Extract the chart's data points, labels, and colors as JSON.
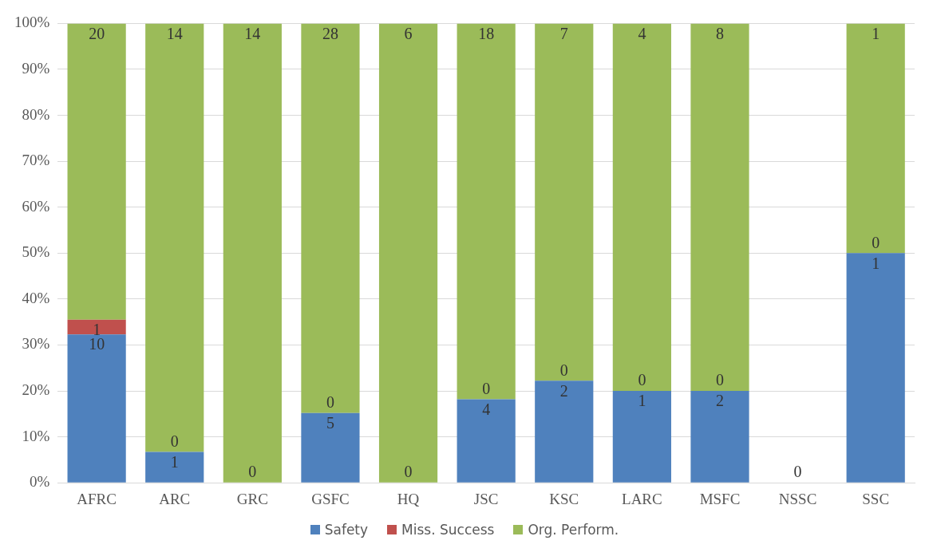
{
  "chart_data": {
    "type": "bar",
    "stacked": true,
    "categories": [
      "AFRC",
      "ARC",
      "GRC",
      "GSFC",
      "HQ",
      "JSC",
      "KSC",
      "LARC",
      "MSFC",
      "NSSC",
      "SSC"
    ],
    "series": [
      {
        "name": "Safety",
        "color": "#4f81bd",
        "values": [
          32.3,
          6.7,
          0,
          15.2,
          0,
          18.2,
          22.2,
          20,
          20,
          0,
          50
        ]
      },
      {
        "name": "Miss. Success",
        "color": "#c0504d",
        "values": [
          3.2,
          0,
          0,
          0,
          0,
          0,
          0,
          0,
          0,
          0,
          0
        ]
      },
      {
        "name": "Org. Perform.",
        "color": "#9bbb59",
        "values": [
          64.5,
          93.3,
          100,
          84.8,
          100,
          81.8,
          77.8,
          80,
          80,
          0,
          50
        ]
      }
    ],
    "annotations": [
      {
        "text": "10",
        "x": "AFRC",
        "y": 32.3
      },
      {
        "text": "1",
        "x": "AFRC",
        "y": 35.5
      },
      {
        "text": "20",
        "x": "AFRC",
        "y": 100
      },
      {
        "text": "1",
        "x": "ARC",
        "y": 6.7
      },
      {
        "text": "0",
        "x": "ARC",
        "y": 6.7
      },
      {
        "text": "14",
        "x": "ARC",
        "y": 100
      },
      {
        "text": "0",
        "x": "GRC",
        "y": 0
      },
      {
        "text": "14",
        "x": "GRC",
        "y": 100
      },
      {
        "text": "5",
        "x": "GSFC",
        "y": 15.2
      },
      {
        "text": "0",
        "x": "GSFC",
        "y": 15.2
      },
      {
        "text": "28",
        "x": "GSFC",
        "y": 100
      },
      {
        "text": "0",
        "x": "HQ",
        "y": 0
      },
      {
        "text": "6",
        "x": "HQ",
        "y": 100
      },
      {
        "text": "4",
        "x": "JSC",
        "y": 18.2
      },
      {
        "text": "0",
        "x": "JSC",
        "y": 18.2
      },
      {
        "text": "18",
        "x": "JSC",
        "y": 100
      },
      {
        "text": "2",
        "x": "KSC",
        "y": 22.2
      },
      {
        "text": "0",
        "x": "KSC",
        "y": 22.2
      },
      {
        "text": "7",
        "x": "KSC",
        "y": 100
      },
      {
        "text": "1",
        "x": "LARC",
        "y": 20
      },
      {
        "text": "0",
        "x": "LARC",
        "y": 20
      },
      {
        "text": "4",
        "x": "LARC",
        "y": 100
      },
      {
        "text": "2",
        "x": "MSFC",
        "y": 20
      },
      {
        "text": "0",
        "x": "MSFC",
        "y": 20
      },
      {
        "text": "8",
        "x": "MSFC",
        "y": 100
      },
      {
        "text": "0",
        "x": "NSSC",
        "y": 0
      },
      {
        "text": "1",
        "x": "SSC",
        "y": 50
      },
      {
        "text": "0",
        "x": "SSC",
        "y": 50
      },
      {
        "text": "1",
        "x": "SSC",
        "y": 100
      }
    ],
    "ylim": [
      0,
      100
    ],
    "yticks": [
      {
        "value": 0,
        "label": "0%"
      },
      {
        "value": 10,
        "label": "10%"
      },
      {
        "value": 20,
        "label": "20%"
      },
      {
        "value": 30,
        "label": "30%"
      },
      {
        "value": 40,
        "label": "40%"
      },
      {
        "value": 50,
        "label": "50%"
      },
      {
        "value": 60,
        "label": "60%"
      },
      {
        "value": 70,
        "label": "70%"
      },
      {
        "value": 80,
        "label": "80%"
      },
      {
        "value": 90,
        "label": "90%"
      },
      {
        "value": 100,
        "label": "100%"
      }
    ],
    "grid": "y",
    "legend": "bottom"
  }
}
